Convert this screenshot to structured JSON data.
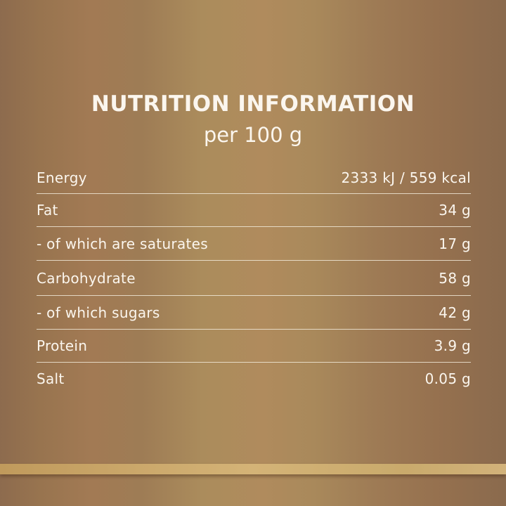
{
  "title": "NUTRITION INFORMATION",
  "subtitle": "per 100 g",
  "rows": [
    {
      "label": "Energy",
      "value": "2333 kJ / 559 kcal"
    },
    {
      "label": "Fat",
      "value": "34 g"
    },
    {
      "label": "- of which are saturates",
      "value": "17 g"
    },
    {
      "label": "Carbohydrate",
      "value": "58 g"
    },
    {
      "label": "- of which sugars",
      "value": "42 g"
    },
    {
      "label": "Protein",
      "value": "3.9 g"
    },
    {
      "label": "Salt",
      "value": "0.05 g"
    }
  ],
  "colors": {
    "background": "#a5825a",
    "text": "#fbf6ee",
    "accent_band": "#d4b377"
  }
}
